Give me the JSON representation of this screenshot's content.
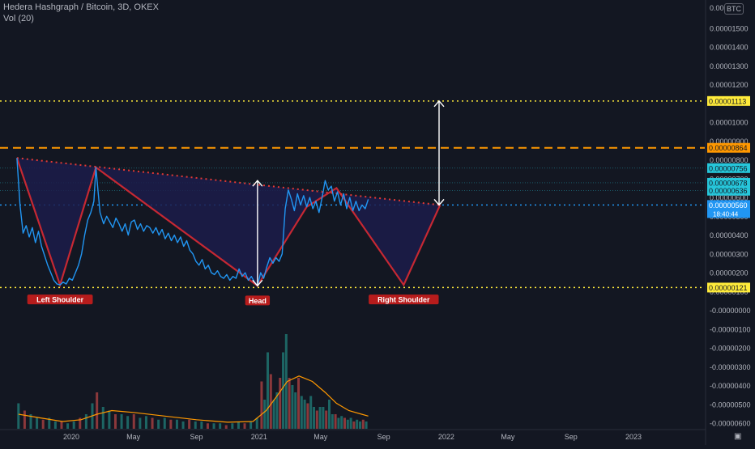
{
  "header": {
    "title": "Hedera Hashgraph / Bitcoin, 3D, OKEX",
    "volume_label": "Vol (20)",
    "currency_badge": "BTC"
  },
  "chart_data": {
    "type": "line",
    "symbol": "Hedera Hashgraph / Bitcoin",
    "interval": "3D",
    "exchange": "OKEX",
    "price_axis": {
      "range": [
        -6.3e-06,
        1.65e-05
      ],
      "ticks": [
        "0.00001500",
        "0.00001400",
        "0.00001300",
        "0.00001200",
        "0.00001000",
        "0.00000900",
        "0.00000800",
        "0.00000700",
        "0.00000600",
        "0.00000500",
        "0.00000400",
        "0.00000300",
        "0.00000200",
        "0.00000100",
        "-0.00000000",
        "-0.00000100",
        "-0.00000200",
        "-0.00000300",
        "-0.00000400",
        "-0.00000500",
        "-0.00000600"
      ],
      "tick_values": [
        1.5e-05,
        1.4e-05,
        1.3e-05,
        1.2e-05,
        1e-05,
        9e-06,
        8e-06,
        7e-06,
        6e-06,
        5e-06,
        4e-06,
        3e-06,
        2e-06,
        1e-06,
        0,
        -1e-06,
        -2e-06,
        -3e-06,
        -4e-06,
        -5e-06,
        -6e-06
      ],
      "top_partial_tick": "0.000016"
    },
    "time_axis": {
      "range": [
        "2019-08-15",
        "2023-05-20"
      ],
      "ticks": [
        {
          "label": "2020",
          "date": "2020-01-01"
        },
        {
          "label": "May",
          "date": "2020-05-01"
        },
        {
          "label": "Sep",
          "date": "2020-09-01"
        },
        {
          "label": "2021",
          "date": "2021-01-01"
        },
        {
          "label": "May",
          "date": "2021-05-01"
        },
        {
          "label": "Sep",
          "date": "2021-09-01"
        },
        {
          "label": "2022",
          "date": "2022-01-01"
        },
        {
          "label": "May",
          "date": "2022-05-01"
        },
        {
          "label": "Sep",
          "date": "2022-09-01"
        },
        {
          "label": "2023",
          "date": "2023-01-01"
        }
      ]
    },
    "price_series": {
      "color": "#2196f3",
      "points": [
        [
          "2019-09-17",
          8.1e-06
        ],
        [
          "2019-09-23",
          5.6e-06
        ],
        [
          "2019-09-29",
          4.1e-06
        ],
        [
          "2019-10-05",
          4.5e-06
        ],
        [
          "2019-10-11",
          3.9e-06
        ],
        [
          "2019-10-17",
          4.4e-06
        ],
        [
          "2019-10-23",
          3.6e-06
        ],
        [
          "2019-10-29",
          4.2e-06
        ],
        [
          "2019-11-04",
          3.4e-06
        ],
        [
          "2019-11-10",
          2.9e-06
        ],
        [
          "2019-11-16",
          2.4e-06
        ],
        [
          "2019-11-22",
          2e-06
        ],
        [
          "2019-11-28",
          1.6e-06
        ],
        [
          "2019-12-04",
          1.4e-06
        ],
        [
          "2019-12-10",
          1.35e-06
        ],
        [
          "2019-12-16",
          1.5e-06
        ],
        [
          "2019-12-22",
          1.4e-06
        ],
        [
          "2019-12-28",
          1.7e-06
        ],
        [
          "2020-01-03",
          1.6e-06
        ],
        [
          "2020-01-09",
          2e-06
        ],
        [
          "2020-01-15",
          2.4e-06
        ],
        [
          "2020-01-21",
          3e-06
        ],
        [
          "2020-01-27",
          4e-06
        ],
        [
          "2020-02-02",
          4.8e-06
        ],
        [
          "2020-02-08",
          5.2e-06
        ],
        [
          "2020-02-14",
          5.8e-06
        ],
        [
          "2020-02-18",
          7.6e-06
        ],
        [
          "2020-02-22",
          6.4e-06
        ],
        [
          "2020-02-26",
          5.2e-06
        ],
        [
          "2020-03-04",
          4.6e-06
        ],
        [
          "2020-03-10",
          5e-06
        ],
        [
          "2020-03-16",
          4.7e-06
        ],
        [
          "2020-03-22",
          4.4e-06
        ],
        [
          "2020-03-28",
          4.9e-06
        ],
        [
          "2020-04-03",
          4.6e-06
        ],
        [
          "2020-04-09",
          4.2e-06
        ],
        [
          "2020-04-15",
          4.6e-06
        ],
        [
          "2020-04-21",
          4e-06
        ],
        [
          "2020-04-27",
          4.7e-06
        ],
        [
          "2020-05-03",
          4.8e-06
        ],
        [
          "2020-05-09",
          4.3e-06
        ],
        [
          "2020-05-15",
          4.6e-06
        ],
        [
          "2020-05-21",
          4.2e-06
        ],
        [
          "2020-05-27",
          4.5e-06
        ],
        [
          "2020-06-02",
          4.4e-06
        ],
        [
          "2020-06-08",
          4.1e-06
        ],
        [
          "2020-06-14",
          4.4e-06
        ],
        [
          "2020-06-20",
          4e-06
        ],
        [
          "2020-06-26",
          4.3e-06
        ],
        [
          "2020-07-02",
          3.8e-06
        ],
        [
          "2020-07-08",
          4.1e-06
        ],
        [
          "2020-07-14",
          3.7e-06
        ],
        [
          "2020-07-20",
          4e-06
        ],
        [
          "2020-07-26",
          3.6e-06
        ],
        [
          "2020-08-01",
          3.9e-06
        ],
        [
          "2020-08-07",
          3.4e-06
        ],
        [
          "2020-08-13",
          3.7e-06
        ],
        [
          "2020-08-19",
          3.2e-06
        ],
        [
          "2020-08-25",
          3e-06
        ],
        [
          "2020-08-31",
          2.6e-06
        ],
        [
          "2020-09-06",
          2.4e-06
        ],
        [
          "2020-09-12",
          2.7e-06
        ],
        [
          "2020-09-18",
          2.2e-06
        ],
        [
          "2020-09-24",
          2.4e-06
        ],
        [
          "2020-09-30",
          2e-06
        ],
        [
          "2020-10-06",
          1.9e-06
        ],
        [
          "2020-10-12",
          2.1e-06
        ],
        [
          "2020-10-18",
          1.8e-06
        ],
        [
          "2020-10-24",
          1.7e-06
        ],
        [
          "2020-10-30",
          1.9e-06
        ],
        [
          "2020-11-05",
          1.6e-06
        ],
        [
          "2020-11-11",
          1.8e-06
        ],
        [
          "2020-11-17",
          1.7e-06
        ],
        [
          "2020-11-23",
          2.2e-06
        ],
        [
          "2020-11-29",
          1.8e-06
        ],
        [
          "2020-12-05",
          2e-06
        ],
        [
          "2020-12-11",
          1.6e-06
        ],
        [
          "2020-12-17",
          1.8e-06
        ],
        [
          "2020-12-23",
          1.5e-06
        ],
        [
          "2020-12-29",
          1.3e-06
        ],
        [
          "2021-01-04",
          2e-06
        ],
        [
          "2021-01-10",
          1.7e-06
        ],
        [
          "2021-01-16",
          2.3e-06
        ],
        [
          "2021-01-22",
          2.8e-06
        ],
        [
          "2021-01-28",
          2.5e-06
        ],
        [
          "2021-02-03",
          2.8e-06
        ],
        [
          "2021-02-09",
          2.6e-06
        ],
        [
          "2021-02-15",
          3e-06
        ],
        [
          "2021-02-21",
          5.4e-06
        ],
        [
          "2021-02-27",
          6.4e-06
        ],
        [
          "2021-03-05",
          5.9e-06
        ],
        [
          "2021-03-11",
          5.3e-06
        ],
        [
          "2021-03-17",
          6.2e-06
        ],
        [
          "2021-03-23",
          5.6e-06
        ],
        [
          "2021-03-29",
          6.1e-06
        ],
        [
          "2021-04-04",
          5.5e-06
        ],
        [
          "2021-04-10",
          6e-06
        ],
        [
          "2021-04-16",
          5.4e-06
        ],
        [
          "2021-04-22",
          5.8e-06
        ],
        [
          "2021-04-28",
          5.2e-06
        ],
        [
          "2021-05-04",
          6e-06
        ],
        [
          "2021-05-10",
          6.9e-06
        ],
        [
          "2021-05-16",
          6.4e-06
        ],
        [
          "2021-05-22",
          6.6e-06
        ],
        [
          "2021-05-28",
          5.8e-06
        ],
        [
          "2021-06-03",
          6.3e-06
        ],
        [
          "2021-06-09",
          5.6e-06
        ],
        [
          "2021-06-15",
          6.2e-06
        ],
        [
          "2021-06-21",
          5.4e-06
        ],
        [
          "2021-06-27",
          6e-06
        ],
        [
          "2021-07-03",
          5.3e-06
        ],
        [
          "2021-07-09",
          5.8e-06
        ],
        [
          "2021-07-15",
          5.3e-06
        ],
        [
          "2021-07-21",
          5.6e-06
        ],
        [
          "2021-07-27",
          5.4e-06
        ],
        [
          "2021-08-02",
          5.9e-06
        ]
      ]
    },
    "volume_series": {
      "color_up": "#26a69a",
      "color_down": "#ef5350",
      "ma_label": "Vol (20)",
      "ma_color": "#ff9800",
      "bars": [
        [
          "2019-09-20",
          0.7
        ],
        [
          "2019-10-02",
          0.5
        ],
        [
          "2019-10-14",
          0.4
        ],
        [
          "2019-10-26",
          0.3
        ],
        [
          "2019-11-07",
          0.25
        ],
        [
          "2019-11-19",
          0.3
        ],
        [
          "2019-12-01",
          0.2
        ],
        [
          "2019-12-13",
          0.2
        ],
        [
          "2019-12-25",
          0.15
        ],
        [
          "2020-01-06",
          0.2
        ],
        [
          "2020-01-18",
          0.3
        ],
        [
          "2020-01-30",
          0.4
        ],
        [
          "2020-02-11",
          0.7
        ],
        [
          "2020-02-20",
          1.0
        ],
        [
          "2020-03-03",
          0.6
        ],
        [
          "2020-03-15",
          0.5
        ],
        [
          "2020-03-27",
          0.4
        ],
        [
          "2020-04-08",
          0.4
        ],
        [
          "2020-04-20",
          0.35
        ],
        [
          "2020-05-02",
          0.4
        ],
        [
          "2020-05-14",
          0.3
        ],
        [
          "2020-05-26",
          0.35
        ],
        [
          "2020-06-07",
          0.3
        ],
        [
          "2020-06-19",
          0.25
        ],
        [
          "2020-07-01",
          0.3
        ],
        [
          "2020-07-13",
          0.25
        ],
        [
          "2020-07-25",
          0.25
        ],
        [
          "2020-08-06",
          0.2
        ],
        [
          "2020-08-18",
          0.25
        ],
        [
          "2020-08-30",
          0.2
        ],
        [
          "2020-09-11",
          0.2
        ],
        [
          "2020-09-23",
          0.15
        ],
        [
          "2020-10-05",
          0.15
        ],
        [
          "2020-10-17",
          0.15
        ],
        [
          "2020-10-29",
          0.1
        ],
        [
          "2020-11-10",
          0.15
        ],
        [
          "2020-11-22",
          0.2
        ],
        [
          "2020-12-04",
          0.15
        ],
        [
          "2020-12-16",
          0.2
        ],
        [
          "2020-12-28",
          0.3
        ],
        [
          "2021-01-06",
          1.3
        ],
        [
          "2021-01-12",
          0.8
        ],
        [
          "2021-01-18",
          2.1
        ],
        [
          "2021-01-24",
          1.5
        ],
        [
          "2021-01-30",
          0.8
        ],
        [
          "2021-02-05",
          1.0
        ],
        [
          "2021-02-11",
          1.4
        ],
        [
          "2021-02-17",
          2.1
        ],
        [
          "2021-02-23",
          2.6
        ],
        [
          "2021-03-01",
          1.4
        ],
        [
          "2021-03-07",
          1.2
        ],
        [
          "2021-03-13",
          1.0
        ],
        [
          "2021-03-19",
          1.4
        ],
        [
          "2021-03-25",
          0.9
        ],
        [
          "2021-03-31",
          0.8
        ],
        [
          "2021-04-06",
          0.7
        ],
        [
          "2021-04-12",
          0.9
        ],
        [
          "2021-04-18",
          0.6
        ],
        [
          "2021-04-24",
          0.5
        ],
        [
          "2021-04-30",
          0.6
        ],
        [
          "2021-05-06",
          0.6
        ],
        [
          "2021-05-12",
          0.5
        ],
        [
          "2021-05-18",
          0.8
        ],
        [
          "2021-05-24",
          0.4
        ],
        [
          "2021-05-30",
          0.4
        ],
        [
          "2021-06-05",
          0.3
        ],
        [
          "2021-06-11",
          0.35
        ],
        [
          "2021-06-17",
          0.3
        ],
        [
          "2021-06-23",
          0.25
        ],
        [
          "2021-06-29",
          0.3
        ],
        [
          "2021-07-05",
          0.2
        ],
        [
          "2021-07-11",
          0.25
        ],
        [
          "2021-07-17",
          0.2
        ],
        [
          "2021-07-23",
          0.25
        ],
        [
          "2021-07-29",
          0.2
        ]
      ],
      "ma_points": [
        [
          "2019-09-20",
          0.4
        ],
        [
          "2019-11-01",
          0.3
        ],
        [
          "2019-12-15",
          0.2
        ],
        [
          "2020-01-20",
          0.25
        ],
        [
          "2020-02-20",
          0.4
        ],
        [
          "2020-03-20",
          0.5
        ],
        [
          "2020-05-01",
          0.45
        ],
        [
          "2020-07-01",
          0.35
        ],
        [
          "2020-09-01",
          0.25
        ],
        [
          "2020-11-01",
          0.18
        ],
        [
          "2020-12-20",
          0.2
        ],
        [
          "2021-01-15",
          0.5
        ],
        [
          "2021-02-05",
          0.9
        ],
        [
          "2021-02-25",
          1.3
        ],
        [
          "2021-03-20",
          1.45
        ],
        [
          "2021-04-15",
          1.3
        ],
        [
          "2021-05-10",
          1.0
        ],
        [
          "2021-06-01",
          0.7
        ],
        [
          "2021-06-25",
          0.5
        ],
        [
          "2021-07-20",
          0.4
        ],
        [
          "2021-08-02",
          0.35
        ]
      ],
      "max_ref": 3.0
    },
    "horizontal_lines": [
      {
        "value": 1.113e-05,
        "label": "0.00001113",
        "color": "#ffeb3b",
        "style": "dotted"
      },
      {
        "value": 8.64e-06,
        "label": "0.00000864",
        "color": "#ff9800",
        "style": "dashed"
      },
      {
        "value": 7.56e-06,
        "label": "0.00000756",
        "color": "#26c6da",
        "style": "thin"
      },
      {
        "value": 6.78e-06,
        "label": "0.00000678",
        "color": "#26c6da",
        "style": "thin"
      },
      {
        "value": 6.36e-06,
        "label": "0.00000636",
        "color": "#26c6da",
        "style": "thin"
      },
      {
        "value": 5.6e-06,
        "label": "0.00000560",
        "color": "#2196f3",
        "style": "dotted"
      },
      {
        "value": 1.21e-06,
        "label": "0.00000121",
        "color": "#ffeb3b",
        "style": "dotted"
      }
    ],
    "last_price_badge": {
      "value": 5.6e-06,
      "label": "0.00000560",
      "countdown": "18:40:44",
      "color": "#2196f3"
    },
    "pattern": {
      "fill": "#1c1c4a",
      "stroke": "#c62833",
      "neckline_color": "#e53935",
      "points": [
        [
          "2019-09-17",
          8.1e-06
        ],
        [
          "2019-12-10",
          1.35e-06
        ],
        [
          "2020-02-18",
          7.6e-06
        ],
        [
          "2020-12-29",
          1.3e-06
        ],
        [
          "2021-04-04",
          5.5e-06
        ],
        [
          "2021-06-01",
          6.5e-06
        ],
        [
          "2021-10-10",
          1.35e-06
        ],
        [
          "2021-12-20",
          5.6e-06
        ]
      ],
      "neckline": [
        [
          "2019-09-17",
          8.1e-06
        ],
        [
          "2021-12-20",
          5.6e-06
        ]
      ],
      "labels": [
        {
          "text": "Left Shoulder",
          "date": "2019-12-10",
          "value": 1.35e-06
        },
        {
          "text": "Head",
          "date": "2020-12-29",
          "value": 1.3e-06
        },
        {
          "text": "Right Shoulder",
          "date": "2021-10-10",
          "value": 1.35e-06
        }
      ]
    },
    "measure_arrows": [
      {
        "date": "2020-12-29",
        "from": 1.3e-06,
        "to": 6.9e-06
      },
      {
        "date": "2021-12-18",
        "from": 5.6e-06,
        "to": 1.113e-05
      }
    ],
    "grid": false,
    "legend": "top-left"
  }
}
